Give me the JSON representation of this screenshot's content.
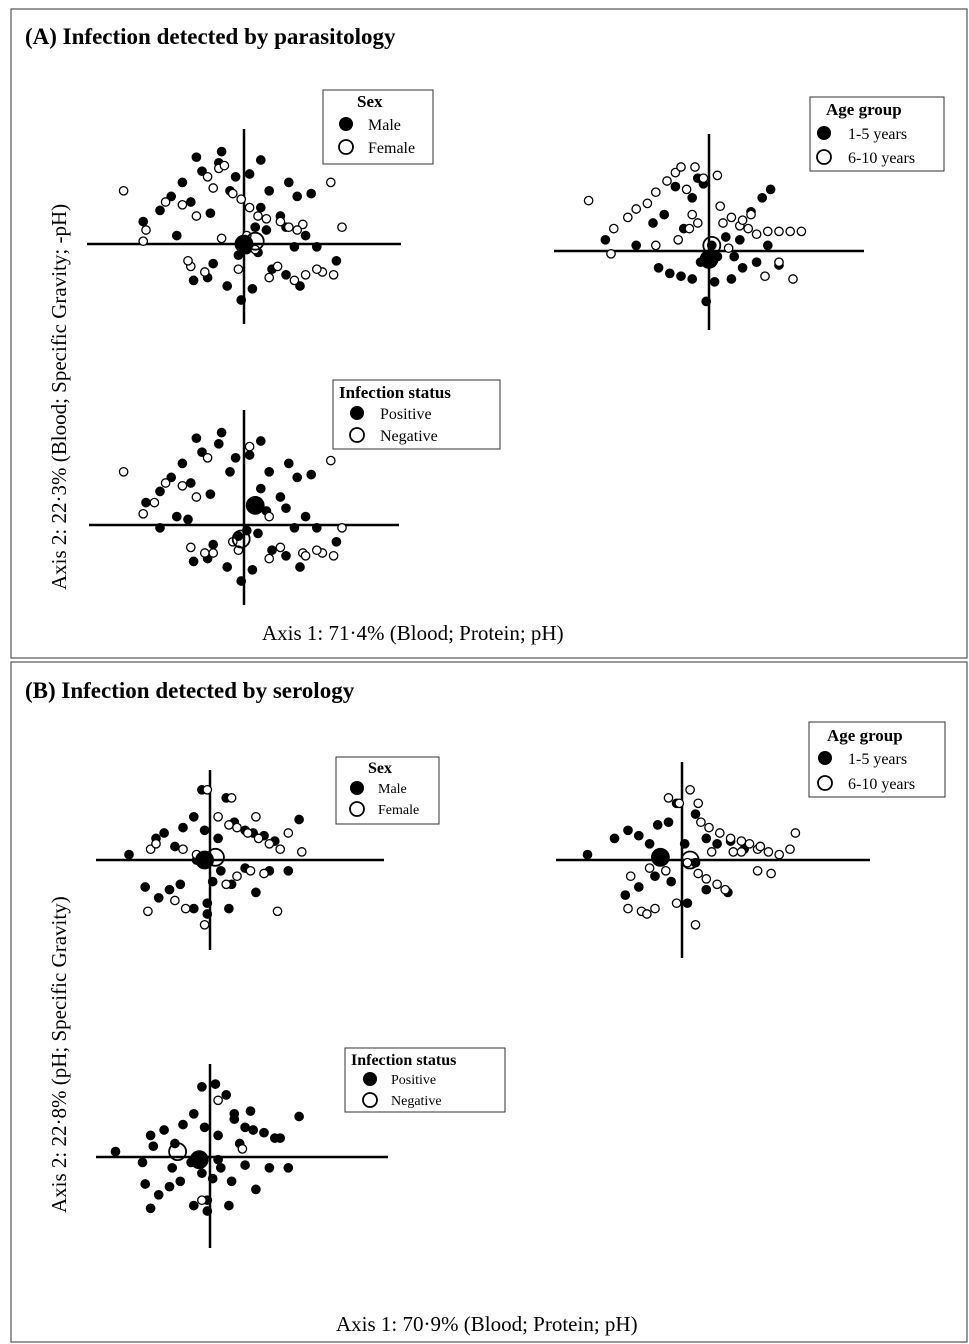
{
  "panels": [
    {
      "title": "(A) Infection detected by parasitology",
      "xlabel": "Axis 1: 71·4% (Blood; Protein; pH)",
      "ylabel": "Axis 2: 22·3%  (Blood; Specific Gravity; -pH)"
    },
    {
      "title": "(B) Infection detected by serology",
      "xlabel": "Axis 1: 70·9% (Blood; Protein; pH)",
      "ylabel": "Axis 2: 22·8% (pH; Specific Gravity)"
    }
  ],
  "legends": {
    "sex": {
      "title": "Sex",
      "filled": "Male",
      "open": "Female"
    },
    "age": {
      "title": "Age group",
      "filled": "1-5 years",
      "open": "6-10 years"
    },
    "infection": {
      "title": "Infection status",
      "filled": "Positive",
      "open": "Negative"
    }
  },
  "chart_data": [
    {
      "type": "scatter",
      "title": "Sex",
      "panel": "A",
      "xlim": [
        -5,
        5
      ],
      "ylim": [
        -4,
        4
      ],
      "series": [
        {
          "name": "Male",
          "marker": "filled",
          "centroid": [
            0,
            0
          ],
          "x": [
            -3.6,
            -3.0,
            -2.6,
            -2.2,
            -1.9,
            -1.5,
            -1.2,
            -0.9,
            -0.5,
            -0.3,
            -2.4,
            -1.7,
            -0.8,
            0.2,
            0.6,
            0.9,
            1.3,
            1.6,
            1.9,
            2.4,
            0.4,
            0.8,
            1.5,
            1.8,
            2.2,
            0.1,
            -0.2,
            -1.8,
            -1.3,
            -0.6,
            0.3,
            1.0,
            1.5,
            2.0,
            2.6,
            3.3,
            -0.1,
            0.5,
            -1.1,
            0.6
          ],
          "y": [
            0.8,
            1.2,
            1.7,
            2.2,
            1.5,
            2.6,
            1.1,
            2.9,
            1.9,
            2.4,
            0.3,
            3.1,
            3.3,
            2.5,
            1.3,
            1.9,
            1.0,
            2.2,
            1.7,
            1.8,
            0.6,
            0.5,
            0.6,
            -0.1,
            0.3,
            -0.2,
            -0.4,
            -1.3,
            -1.2,
            -1.5,
            -1.6,
            -0.9,
            -1.1,
            -1.5,
            -0.1,
            -0.6,
            -2.0,
            -0.3,
            -0.7,
            3.0
          ]
        },
        {
          "name": "Female",
          "marker": "open",
          "centroid": [
            0.4,
            0.1
          ],
          "x": [
            -4.3,
            -3.6,
            -2.8,
            -2.2,
            -1.7,
            -1.3,
            -1.1,
            -0.9,
            -0.7,
            -0.4,
            -0.1,
            0.2,
            0.5,
            0.8,
            1.3,
            1.6,
            2.1,
            2.8,
            3.1,
            3.5,
            -1.9,
            -1.4,
            -0.2,
            0.1,
            0.4,
            0.9,
            1.2,
            1.8,
            2.2,
            2.6,
            3.2,
            -3.5,
            -2.0,
            -0.8,
            1.9
          ],
          "y": [
            1.9,
            0.1,
            1.5,
            1.4,
            1.0,
            2.4,
            2.0,
            2.7,
            2.8,
            1.8,
            1.6,
            1.3,
            1.0,
            0.9,
            0.8,
            0.6,
            0.7,
            -1.0,
            2.2,
            0.6,
            -0.8,
            -1.0,
            -0.9,
            0.3,
            -0.2,
            -1.2,
            -0.8,
            -1.3,
            -1.1,
            -0.9,
            -1.1,
            0.5,
            -0.6,
            0.2,
            0.5
          ]
        }
      ]
    },
    {
      "type": "scatter",
      "title": "Age group",
      "panel": "A",
      "xlim": [
        -5,
        5
      ],
      "ylim": [
        -4,
        4
      ],
      "series": [
        {
          "name": "1-5 years",
          "marker": "filled",
          "centroid": [
            0,
            -0.3
          ],
          "x": [
            -3.7,
            -2.6,
            -2.0,
            -1.6,
            -1.2,
            -0.9,
            -0.6,
            -0.4,
            -0.2,
            0.1,
            0.3,
            0.6,
            1.1,
            1.5,
            1.9,
            2.2,
            2.5,
            -1.8,
            -1.4,
            -1.0,
            -0.6,
            0.2,
            0.8,
            1.2,
            1.7,
            2.1,
            -0.3,
            0.1,
            -0.1,
            0.9
          ],
          "y": [
            0.4,
            0.2,
            1.0,
            1.3,
            2.3,
            0.8,
            1.9,
            2.6,
            2.4,
            0.2,
            -0.2,
            0.5,
            0.4,
            1.4,
            1.9,
            2.2,
            -0.5,
            -0.6,
            -0.8,
            -0.9,
            -1.0,
            -1.1,
            -1.0,
            -0.6,
            -0.4,
            0.2,
            -0.4,
            -0.4,
            -1.8,
            -0.2
          ]
        },
        {
          "name": "6-10 years",
          "marker": "open",
          "centroid": [
            0.1,
            0.2
          ],
          "x": [
            -4.3,
            -3.4,
            -2.9,
            -2.6,
            -2.2,
            -1.9,
            -1.5,
            -1.2,
            -1.0,
            -0.8,
            -0.6,
            -0.4,
            -0.2,
            0.3,
            0.5,
            0.8,
            1.1,
            1.4,
            1.7,
            2.1,
            2.5,
            2.9,
            3.3,
            -3.5,
            -1.9,
            -1.1,
            -0.7,
            0.4,
            0.7,
            1.2,
            1.5,
            2.5,
            3.0,
            2.0,
            -0.5
          ],
          "y": [
            1.8,
            0.8,
            1.2,
            1.5,
            1.7,
            2.1,
            2.5,
            2.8,
            3.0,
            2.2,
            1.3,
            1.0,
            2.6,
            2.7,
            1.0,
            1.2,
            0.9,
            0.8,
            0.6,
            0.7,
            0.7,
            0.7,
            0.7,
            -0.1,
            0.2,
            0.4,
            0.8,
            1.6,
            0.1,
            1.1,
            1.3,
            -0.4,
            -1.0,
            -0.9,
            3.0
          ]
        }
      ]
    },
    {
      "type": "scatter",
      "title": "Infection status",
      "panel": "A",
      "xlim": [
        -5,
        5
      ],
      "ylim": [
        -4,
        4
      ],
      "series": [
        {
          "name": "Positive",
          "marker": "filled",
          "centroid": [
            0.4,
            0.7
          ],
          "x": [
            -3.5,
            -3.0,
            -2.6,
            -2.2,
            -1.9,
            -1.5,
            -1.2,
            -0.9,
            -0.5,
            -0.3,
            -2.4,
            -1.7,
            -0.8,
            0.2,
            0.6,
            0.9,
            1.3,
            1.6,
            1.9,
            2.4,
            0.4,
            0.8,
            1.5,
            1.8,
            2.2,
            0.1,
            -0.2,
            -1.8,
            -1.3,
            -0.6,
            0.3,
            1.0,
            1.5,
            2.0,
            2.6,
            3.3,
            -0.1,
            0.5,
            -1.1,
            0.6,
            -3.0,
            -2.0
          ],
          "y": [
            0.8,
            1.2,
            1.7,
            2.2,
            1.5,
            2.6,
            1.1,
            2.9,
            1.9,
            2.4,
            0.3,
            3.1,
            3.3,
            2.5,
            1.3,
            1.9,
            1.0,
            2.2,
            1.7,
            1.8,
            0.6,
            0.5,
            0.6,
            -0.1,
            0.3,
            -0.2,
            -0.4,
            -1.3,
            -1.2,
            -1.5,
            -1.6,
            -0.9,
            -1.1,
            -1.5,
            -0.1,
            -0.6,
            -2.0,
            -0.3,
            -0.7,
            3.0,
            -0.1,
            0.2
          ]
        },
        {
          "name": "Negative",
          "marker": "open",
          "centroid": [
            -0.1,
            -0.5
          ],
          "x": [
            -4.3,
            -3.6,
            -2.8,
            -2.2,
            -1.7,
            -1.3,
            -1.1,
            -0.4,
            0.2,
            0.9,
            1.3,
            2.1,
            2.8,
            3.1,
            3.5,
            -1.9,
            -1.4,
            -0.2,
            0.9,
            2.2,
            2.6,
            3.2,
            -3.2
          ],
          "y": [
            1.9,
            0.4,
            1.5,
            1.4,
            1.0,
            2.4,
            -1.0,
            -0.6,
            2.8,
            0.3,
            -0.8,
            -1.0,
            -1.0,
            2.3,
            -0.1,
            -0.8,
            -1.0,
            -0.9,
            -1.2,
            -1.1,
            -0.9,
            -1.1,
            0.8
          ]
        }
      ]
    },
    {
      "type": "scatter",
      "title": "Sex",
      "panel": "B",
      "xlim": [
        -5,
        5
      ],
      "ylim": [
        -4,
        4
      ],
      "series": [
        {
          "name": "Male",
          "marker": "filled",
          "centroid": [
            -0.2,
            0
          ],
          "x": [
            -3.0,
            -2.0,
            -1.7,
            -1.3,
            -1.0,
            -0.6,
            -0.3,
            -0.2,
            0.3,
            0.6,
            0.9,
            1.3,
            1.6,
            2.0,
            2.4,
            2.9,
            -2.4,
            -1.9,
            -1.5,
            -1.1,
            -0.6,
            -0.1,
            0.4,
            0.8,
            1.3,
            1.7,
            2.2,
            -0.5,
            0.1,
            0.7,
            3.3,
            -0.1
          ],
          "y": [
            0.2,
            0.8,
            1.0,
            0.5,
            1.2,
            1.6,
            2.6,
            1.1,
            0.8,
            2.3,
            1.4,
            1.1,
            1.0,
            0.9,
            0.7,
            -0.4,
            -1.0,
            -1.4,
            -1.1,
            -0.9,
            -1.8,
            -1.6,
            -0.4,
            -0.9,
            -0.3,
            -1.2,
            -0.4,
            0.0,
            -0.8,
            -1.8,
            1.5,
            -2.0
          ]
        },
        {
          "name": "Female",
          "marker": "open",
          "centroid": [
            0.2,
            0.1
          ],
          "x": [
            -2.3,
            -1.3,
            -0.9,
            -0.5,
            -0.1,
            0.3,
            0.7,
            1.0,
            1.4,
            1.8,
            2.2,
            2.6,
            2.9,
            -2.2,
            -1.0,
            -0.3,
            0.6,
            1.0,
            1.5,
            2.0,
            2.5,
            -2.0,
            0.8,
            1.7,
            3.4,
            -0.2
          ],
          "y": [
            -1.9,
            -1.5,
            -1.8,
            0.2,
            2.6,
            1.6,
            1.3,
            1.2,
            1.0,
            0.8,
            0.6,
            0.4,
            1.0,
            0.4,
            0.4,
            0.0,
            -0.9,
            -0.6,
            -0.4,
            -0.5,
            -1.9,
            0.6,
            2.3,
            1.6,
            0.3,
            -2.4
          ]
        }
      ]
    },
    {
      "type": "scatter",
      "title": "Age group",
      "panel": "B",
      "xlim": [
        -5,
        5
      ],
      "ylim": [
        -4,
        4
      ],
      "series": [
        {
          "name": "1-5 years",
          "marker": "filled",
          "centroid": [
            -0.8,
            0.1
          ],
          "x": [
            -3.5,
            -2.5,
            -2.0,
            -1.6,
            -1.2,
            -0.9,
            -0.5,
            -0.2,
            0.1,
            0.5,
            0.9,
            1.3,
            1.8,
            2.3,
            -2.1,
            -1.6,
            -1.0,
            -0.4,
            0.2,
            0.9,
            1.7,
            -0.8,
            0.5,
            2.9
          ],
          "y": [
            0.2,
            0.8,
            1.1,
            0.9,
            0.6,
            1.3,
            1.4,
            2.1,
            0.6,
            1.7,
            0.8,
            0.6,
            0.7,
            0.4,
            -1.3,
            -1.0,
            -0.6,
            -0.8,
            -1.6,
            -1.1,
            -1.2,
            0.2,
            -0.1,
            0.5
          ]
        },
        {
          "name": "6-10 years",
          "marker": "open",
          "centroid": [
            0.3,
            0.0
          ],
          "x": [
            -2.0,
            -1.5,
            -1.0,
            -0.5,
            -0.1,
            0.3,
            0.7,
            1.0,
            1.4,
            1.8,
            2.2,
            2.5,
            2.8,
            3.2,
            3.6,
            4.2,
            -1.9,
            -1.2,
            -0.6,
            0.2,
            0.6,
            0.9,
            1.3,
            1.6,
            2.2,
            2.9,
            -1.3,
            0.5,
            1.1,
            1.9,
            2.8,
            3.3,
            4.0,
            -0.2,
            0.6
          ],
          "y": [
            -1.8,
            -1.9,
            -1.8,
            2.3,
            2.1,
            2.6,
            1.4,
            1.2,
            1.0,
            0.8,
            0.7,
            0.6,
            0.4,
            0.3,
            0.2,
            1.0,
            -0.6,
            -0.3,
            -0.4,
            -0.1,
            -0.5,
            -0.7,
            -0.9,
            -1.1,
            0.3,
            0.5,
            -2.0,
            -2.4,
            0.3,
            0.3,
            -0.4,
            -0.5,
            0.4,
            -1.6,
            2.1
          ]
        }
      ]
    },
    {
      "type": "scatter",
      "title": "Infection status",
      "panel": "B",
      "xlim": [
        -5,
        5
      ],
      "ylim": [
        -4,
        4
      ],
      "series": [
        {
          "name": "Positive",
          "marker": "filled",
          "centroid": [
            -0.4,
            -0.1
          ],
          "x": [
            -3.5,
            -2.2,
            -1.7,
            -1.3,
            -1.0,
            -0.6,
            -0.3,
            -0.2,
            0.3,
            0.6,
            0.9,
            1.3,
            1.6,
            2.0,
            2.4,
            2.9,
            -2.4,
            -1.9,
            -1.5,
            -1.1,
            -0.6,
            -0.1,
            0.4,
            0.8,
            1.3,
            1.7,
            2.2,
            -0.5,
            0.1,
            0.7,
            3.3,
            -0.1,
            -2.5,
            -2.2,
            -1.4,
            -0.7,
            0.2,
            0.9,
            1.5,
            2.6,
            -2.1,
            -0.3,
            0.3,
            1.1
          ],
          "y": [
            0.2,
            0.8,
            1.0,
            0.5,
            1.2,
            1.6,
            2.6,
            1.1,
            0.8,
            2.3,
            1.4,
            1.1,
            1.0,
            0.9,
            0.7,
            -0.4,
            -1.0,
            -1.4,
            -1.1,
            -0.9,
            -1.8,
            -1.6,
            -0.4,
            -0.9,
            -0.3,
            -1.2,
            -0.4,
            0.0,
            -0.8,
            -1.8,
            1.5,
            -2.0,
            -0.2,
            -1.9,
            -0.4,
            -0.2,
            2.7,
            1.6,
            1.7,
            0.7,
            0.4,
            -0.6,
            -0.1,
            0.5
          ]
        },
        {
          "name": "Negative",
          "marker": "open",
          "centroid": [
            -1.2,
            0.2
          ],
          "x": [
            -0.3,
            1.2,
            0.3
          ],
          "y": [
            -1.6,
            0.3,
            2.1
          ]
        }
      ]
    }
  ]
}
